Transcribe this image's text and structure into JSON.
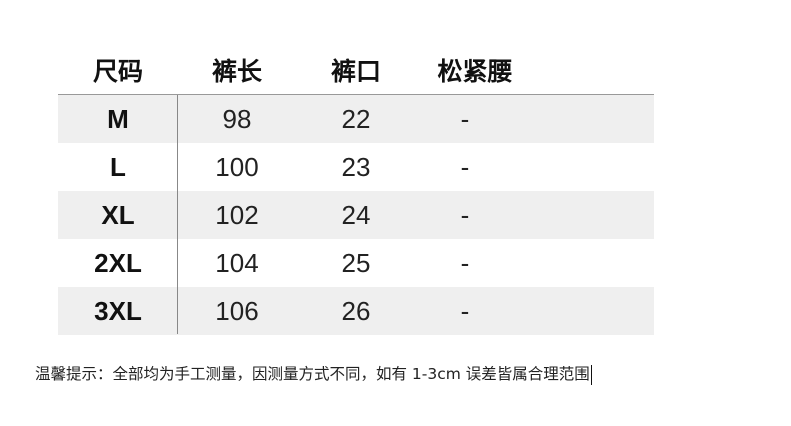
{
  "table": {
    "headers": [
      "尺码",
      "裤长",
      "裤口",
      "松紧腰"
    ],
    "rows": [
      {
        "size": "M",
        "length": "98",
        "hem": "22",
        "waist": "-"
      },
      {
        "size": "L",
        "length": "100",
        "hem": "23",
        "waist": "-"
      },
      {
        "size": "XL",
        "length": "102",
        "hem": "24",
        "waist": "-"
      },
      {
        "size": "2XL",
        "length": "104",
        "hem": "25",
        "waist": "-"
      },
      {
        "size": "3XL",
        "length": "106",
        "hem": "26",
        "waist": "-"
      }
    ]
  },
  "note": "温馨提示：全部均为手工测量，因测量方式不同，如有 1-3cm 误差皆属合理范围"
}
